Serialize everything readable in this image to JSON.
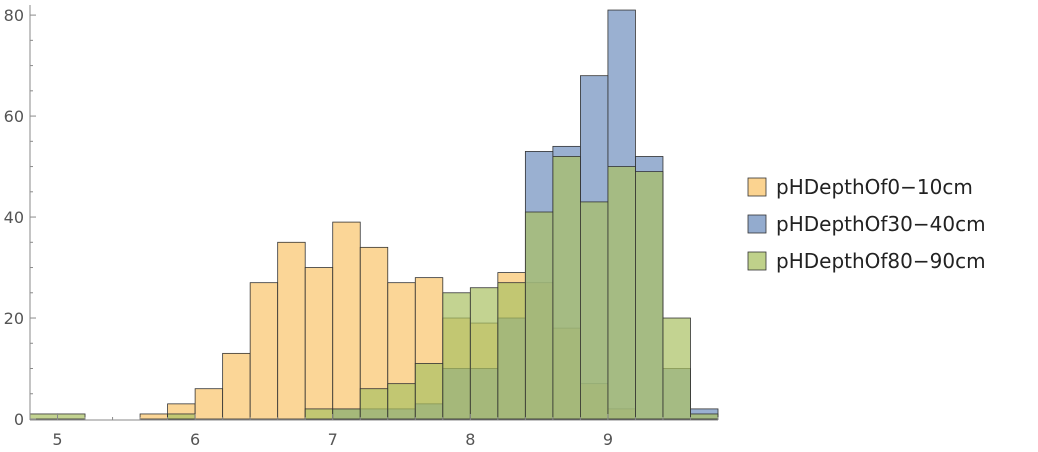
{
  "chart_data": {
    "type": "histogram",
    "title": "",
    "xlabel": "",
    "ylabel": "",
    "bin_width": 0.2,
    "xlim": [
      4.8,
      9.8
    ],
    "ylim": [
      0,
      82
    ],
    "x_ticks": [
      "5",
      "6",
      "7",
      "8",
      "9"
    ],
    "y_ticks": [
      "0",
      "20",
      "40",
      "60",
      "80"
    ],
    "legend_position": "right",
    "series": [
      {
        "name": "pHDepthOf0−10cm",
        "color": "#f9c46b",
        "bins": [
          {
            "start": 5.6,
            "count": 1
          },
          {
            "start": 5.8,
            "count": 3
          },
          {
            "start": 6.0,
            "count": 6
          },
          {
            "start": 6.2,
            "count": 13
          },
          {
            "start": 6.4,
            "count": 27
          },
          {
            "start": 6.6,
            "count": 35
          },
          {
            "start": 6.8,
            "count": 30
          },
          {
            "start": 7.0,
            "count": 39
          },
          {
            "start": 7.2,
            "count": 34
          },
          {
            "start": 7.4,
            "count": 27
          },
          {
            "start": 7.6,
            "count": 28
          },
          {
            "start": 7.8,
            "count": 20
          },
          {
            "start": 8.0,
            "count": 19
          },
          {
            "start": 8.2,
            "count": 29
          },
          {
            "start": 8.4,
            "count": 27
          },
          {
            "start": 8.6,
            "count": 18
          },
          {
            "start": 8.8,
            "count": 7
          },
          {
            "start": 9.0,
            "count": 2
          }
        ]
      },
      {
        "name": "pHDepthOf30−40cm",
        "color": "#6f8fbe",
        "bins": [
          {
            "start": 7.0,
            "count": 2
          },
          {
            "start": 7.2,
            "count": 2
          },
          {
            "start": 7.4,
            "count": 2
          },
          {
            "start": 7.6,
            "count": 3
          },
          {
            "start": 7.8,
            "count": 10
          },
          {
            "start": 8.0,
            "count": 10
          },
          {
            "start": 8.2,
            "count": 20
          },
          {
            "start": 8.4,
            "count": 53
          },
          {
            "start": 8.6,
            "count": 54
          },
          {
            "start": 8.8,
            "count": 68
          },
          {
            "start": 9.0,
            "count": 81
          },
          {
            "start": 9.2,
            "count": 52
          },
          {
            "start": 9.4,
            "count": 10
          },
          {
            "start": 9.6,
            "count": 2
          }
        ]
      },
      {
        "name": "pHDepthOf80−90cm",
        "color": "#a9c163",
        "bins": [
          {
            "start": 4.8,
            "count": 1
          },
          {
            "start": 5.0,
            "count": 1
          },
          {
            "start": 5.8,
            "count": 1
          },
          {
            "start": 6.8,
            "count": 2
          },
          {
            "start": 7.0,
            "count": 2
          },
          {
            "start": 7.2,
            "count": 6
          },
          {
            "start": 7.4,
            "count": 7
          },
          {
            "start": 7.6,
            "count": 11
          },
          {
            "start": 7.8,
            "count": 25
          },
          {
            "start": 8.0,
            "count": 26
          },
          {
            "start": 8.2,
            "count": 27
          },
          {
            "start": 8.4,
            "count": 41
          },
          {
            "start": 8.6,
            "count": 52
          },
          {
            "start": 8.8,
            "count": 43
          },
          {
            "start": 9.0,
            "count": 50
          },
          {
            "start": 9.2,
            "count": 49
          },
          {
            "start": 9.4,
            "count": 20
          },
          {
            "start": 9.6,
            "count": 1
          }
        ]
      }
    ]
  }
}
